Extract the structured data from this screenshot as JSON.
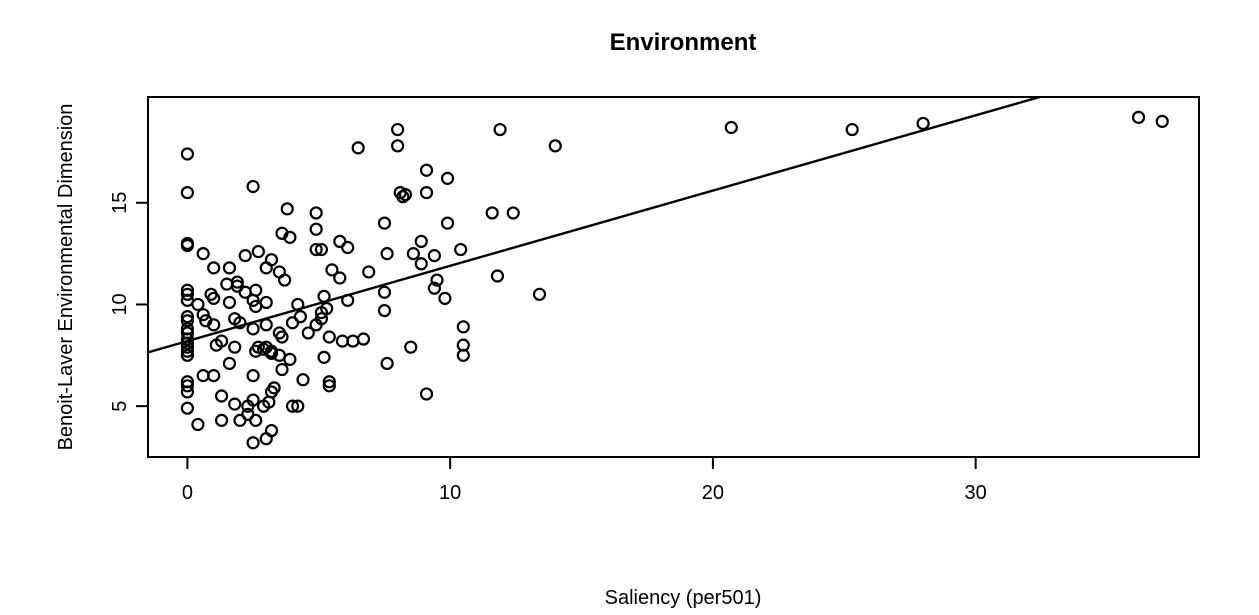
{
  "chart_data": {
    "type": "scatter",
    "title": "Environment",
    "xlabel": "Saliency (per501)",
    "ylabel": "Benoit-Laver Environmental Dimension",
    "xlim": [
      -1.5,
      38.5
    ],
    "ylim": [
      2.5,
      20.2
    ],
    "xticks": [
      0,
      10,
      20,
      30
    ],
    "yticks": [
      5,
      10,
      15
    ],
    "grid": false,
    "legend": "none",
    "fit_line": {
      "intercept": 8.2,
      "slope": 0.37
    },
    "points": [
      [
        0,
        17.4
      ],
      [
        0,
        15.5
      ],
      [
        0,
        13.0
      ],
      [
        0,
        12.9
      ],
      [
        0,
        10.7
      ],
      [
        0,
        10.5
      ],
      [
        0,
        10.2
      ],
      [
        0,
        9.4
      ],
      [
        0,
        9.2
      ],
      [
        0,
        8.8
      ],
      [
        0,
        8.6
      ],
      [
        0,
        8.3
      ],
      [
        0,
        8.1
      ],
      [
        0,
        7.9
      ],
      [
        0,
        7.7
      ],
      [
        0,
        7.5
      ],
      [
        0,
        6.2
      ],
      [
        0,
        6.0
      ],
      [
        0,
        5.7
      ],
      [
        0,
        4.9
      ],
      [
        0.4,
        10.0
      ],
      [
        0.4,
        4.1
      ],
      [
        0.6,
        12.5
      ],
      [
        0.6,
        9.5
      ],
      [
        0.6,
        6.5
      ],
      [
        0.7,
        9.2
      ],
      [
        0.9,
        10.5
      ],
      [
        1.0,
        11.8
      ],
      [
        1.0,
        10.3
      ],
      [
        1.0,
        9.0
      ],
      [
        1.0,
        6.5
      ],
      [
        1.1,
        8.0
      ],
      [
        1.3,
        8.2
      ],
      [
        1.3,
        5.5
      ],
      [
        1.3,
        4.3
      ],
      [
        1.5,
        11.0
      ],
      [
        1.6,
        11.8
      ],
      [
        1.6,
        10.1
      ],
      [
        1.6,
        7.1
      ],
      [
        1.8,
        9.3
      ],
      [
        1.8,
        7.9
      ],
      [
        1.8,
        5.1
      ],
      [
        1.9,
        11.1
      ],
      [
        1.9,
        10.9
      ],
      [
        2.0,
        4.3
      ],
      [
        2.0,
        9.1
      ],
      [
        2.2,
        10.6
      ],
      [
        2.2,
        12.4
      ],
      [
        2.3,
        4.6
      ],
      [
        2.3,
        5.0
      ],
      [
        2.5,
        15.8
      ],
      [
        2.5,
        6.5
      ],
      [
        2.5,
        5.3
      ],
      [
        2.5,
        3.2
      ],
      [
        2.5,
        8.8
      ],
      [
        2.5,
        10.2
      ],
      [
        2.6,
        9.9
      ],
      [
        2.6,
        10.7
      ],
      [
        2.6,
        7.7
      ],
      [
        2.6,
        4.3
      ],
      [
        2.7,
        12.6
      ],
      [
        2.7,
        7.9
      ],
      [
        2.9,
        5.0
      ],
      [
        2.9,
        7.8
      ],
      [
        3.0,
        11.8
      ],
      [
        3.0,
        10.1
      ],
      [
        3.0,
        9.0
      ],
      [
        3.0,
        7.9
      ],
      [
        3.0,
        3.4
      ],
      [
        3.1,
        5.2
      ],
      [
        3.2,
        7.6
      ],
      [
        3.2,
        7.7
      ],
      [
        3.2,
        12.2
      ],
      [
        3.2,
        5.7
      ],
      [
        3.2,
        3.8
      ],
      [
        3.3,
        5.9
      ],
      [
        3.5,
        11.6
      ],
      [
        3.5,
        8.6
      ],
      [
        3.5,
        7.5
      ],
      [
        3.6,
        13.5
      ],
      [
        3.6,
        8.4
      ],
      [
        3.6,
        6.8
      ],
      [
        3.7,
        11.2
      ],
      [
        3.8,
        14.7
      ],
      [
        3.9,
        13.3
      ],
      [
        3.9,
        7.3
      ],
      [
        4.0,
        9.1
      ],
      [
        4.0,
        5.0
      ],
      [
        4.2,
        5.0
      ],
      [
        4.2,
        10.0
      ],
      [
        4.3,
        9.4
      ],
      [
        4.4,
        6.3
      ],
      [
        4.6,
        8.6
      ],
      [
        4.9,
        14.5
      ],
      [
        4.9,
        13.7
      ],
      [
        4.9,
        12.7
      ],
      [
        4.9,
        9.0
      ],
      [
        5.1,
        12.7
      ],
      [
        5.1,
        9.3
      ],
      [
        5.1,
        9.6
      ],
      [
        5.2,
        10.4
      ],
      [
        5.2,
        7.4
      ],
      [
        5.3,
        9.8
      ],
      [
        5.4,
        8.4
      ],
      [
        5.4,
        6.0
      ],
      [
        5.4,
        6.2
      ],
      [
        5.5,
        11.7
      ],
      [
        5.8,
        13.1
      ],
      [
        5.8,
        11.3
      ],
      [
        5.9,
        8.2
      ],
      [
        6.1,
        10.2
      ],
      [
        6.1,
        12.8
      ],
      [
        6.3,
        8.2
      ],
      [
        6.5,
        17.7
      ],
      [
        6.7,
        8.3
      ],
      [
        6.9,
        11.6
      ],
      [
        7.5,
        14.0
      ],
      [
        7.5,
        10.6
      ],
      [
        7.5,
        9.7
      ],
      [
        7.6,
        7.1
      ],
      [
        7.6,
        12.5
      ],
      [
        8.0,
        18.6
      ],
      [
        8.0,
        17.8
      ],
      [
        8.1,
        15.5
      ],
      [
        8.2,
        15.3
      ],
      [
        8.3,
        15.4
      ],
      [
        8.5,
        7.9
      ],
      [
        8.6,
        12.5
      ],
      [
        8.9,
        13.1
      ],
      [
        8.9,
        12.0
      ],
      [
        9.1,
        16.6
      ],
      [
        9.1,
        15.5
      ],
      [
        9.1,
        5.6
      ],
      [
        9.4,
        12.4
      ],
      [
        9.4,
        10.8
      ],
      [
        9.5,
        11.2
      ],
      [
        9.8,
        10.3
      ],
      [
        9.9,
        16.2
      ],
      [
        9.9,
        14.0
      ],
      [
        10.4,
        12.7
      ],
      [
        10.5,
        8.9
      ],
      [
        10.5,
        8.0
      ],
      [
        10.5,
        7.5
      ],
      [
        11.6,
        14.5
      ],
      [
        11.8,
        11.4
      ],
      [
        11.9,
        18.6
      ],
      [
        12.4,
        14.5
      ],
      [
        13.4,
        10.5
      ],
      [
        14.0,
        17.8
      ],
      [
        20.7,
        18.7
      ],
      [
        25.3,
        18.6
      ],
      [
        28.0,
        18.9
      ],
      [
        36.2,
        19.2
      ],
      [
        37.1,
        19.0
      ]
    ]
  }
}
